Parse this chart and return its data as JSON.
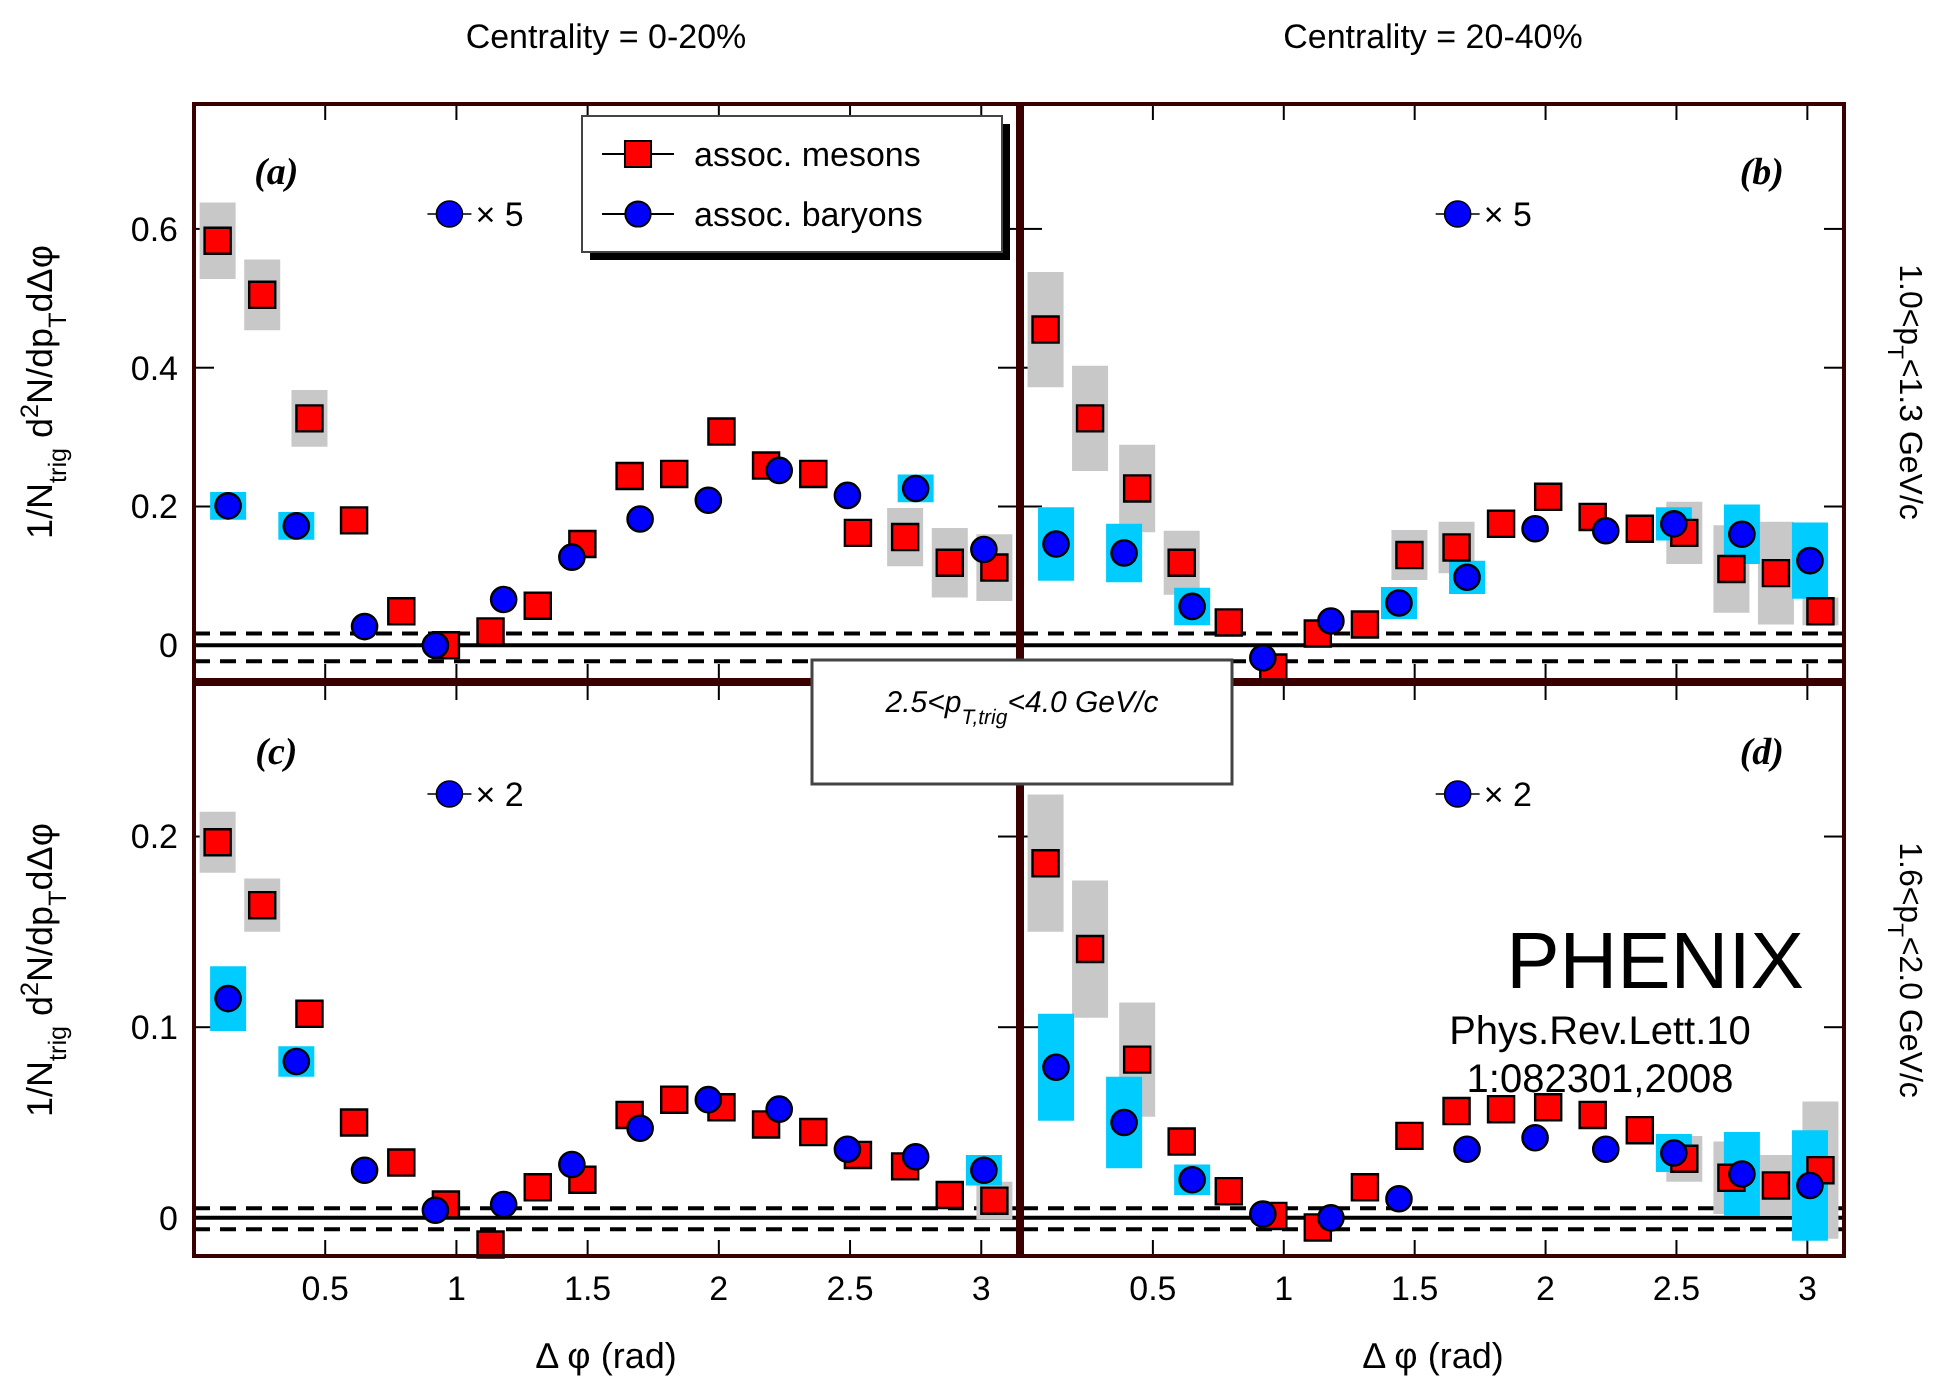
{
  "chart_data": [
    {
      "type": "scatter",
      "title": "Centrality = 0-20%",
      "ylabel": "1/N$_{trig}$ d$^{2}$N/dp$_{T}$dΔφ",
      "xlim": [
        0,
        3.14
      ],
      "xticks": [
        0.5,
        1,
        1.5,
        2,
        2.5,
        3
      ],
      "ylim": [
        -0.05,
        0.78
      ],
      "yticks": [
        0,
        0.2,
        0.4,
        0.6
      ],
      "tick_labels": "y",
      "legend": "top right",
      "annotations": [
        "(a)",
        "× 5"
      ],
      "ref_lines": [
        {
          "axis": "y",
          "value": 0,
          "line_style": "solid"
        },
        {
          "axis": "y",
          "value": 0.017,
          "line_style": "dashed"
        },
        {
          "axis": "y",
          "value": -0.023,
          "line_style": "dashed"
        }
      ],
      "series": [
        {
          "name": "assoc. mesons",
          "color": "#ff0000",
          "marker": "square",
          "x": [
            0.09,
            0.26,
            0.44,
            0.61,
            0.79,
            0.96,
            1.13,
            1.31,
            1.48,
            1.66,
            1.83,
            2.01,
            2.18,
            2.36,
            2.53,
            2.71,
            2.88,
            3.05
          ],
          "values": [
            0.583,
            0.505,
            0.327,
            0.18,
            0.049,
            0.0,
            0.02,
            0.057,
            0.146,
            0.244,
            0.247,
            0.308,
            0.259,
            0.247,
            0.162,
            0.156,
            0.119,
            0.112
          ],
          "errors": [
            0.055,
            0.051,
            0.041,
            null,
            null,
            null,
            null,
            null,
            null,
            null,
            null,
            null,
            null,
            null,
            null,
            0.042,
            0.05,
            0.048
          ]
        },
        {
          "name": "assoc. baryons",
          "color": "#0000ff",
          "marker": "circle",
          "x": [
            0.13,
            0.39,
            0.65,
            0.92,
            1.18,
            1.44,
            1.7,
            1.96,
            2.23,
            2.49,
            2.75,
            3.01
          ],
          "values": [
            0.201,
            0.172,
            0.027,
            0.0,
            0.066,
            0.127,
            0.182,
            0.209,
            0.252,
            0.216,
            0.226,
            0.138
          ],
          "errors": [
            0.02,
            0.02,
            null,
            null,
            null,
            null,
            null,
            null,
            null,
            null,
            0.02,
            null
          ]
        }
      ]
    },
    {
      "type": "scatter",
      "title": "Centrality = 20-40%",
      "y2label": "1.0<p$_{T}$<1.3 GeV/c",
      "xlim": [
        0,
        3.14
      ],
      "xticks": [
        0.5,
        1,
        1.5,
        2,
        2.5,
        3
      ],
      "ylim": [
        -0.05,
        0.78
      ],
      "yticks": [
        0,
        0.2,
        0.4,
        0.6
      ],
      "tick_labels": false,
      "annotations": [
        "(b)",
        "× 5"
      ],
      "ref_lines": [
        {
          "axis": "y",
          "value": 0,
          "line_style": "solid"
        },
        {
          "axis": "y",
          "value": 0.017,
          "line_style": "dashed"
        },
        {
          "axis": "y",
          "value": -0.023,
          "line_style": "dashed"
        }
      ],
      "series": [
        {
          "color": "#ff0000",
          "marker": "square",
          "x": [
            0.09,
            0.26,
            0.44,
            0.61,
            0.79,
            0.96,
            1.13,
            1.31,
            1.48,
            1.66,
            1.83,
            2.01,
            2.18,
            2.36,
            2.53,
            2.71,
            2.88,
            3.05
          ],
          "values": [
            0.455,
            0.327,
            0.226,
            0.119,
            0.033,
            -0.032,
            0.017,
            0.03,
            0.13,
            0.141,
            0.175,
            0.214,
            0.185,
            0.168,
            0.162,
            0.11,
            0.104,
            0.049
          ],
          "errors": [
            0.083,
            0.076,
            0.063,
            0.046,
            null,
            null,
            null,
            null,
            0.036,
            0.037,
            null,
            null,
            null,
            null,
            0.045,
            0.063,
            0.074,
            0.02
          ]
        },
        {
          "color": "#0000ff",
          "marker": "circle",
          "x": [
            0.13,
            0.39,
            0.65,
            0.92,
            1.18,
            1.44,
            1.7,
            1.96,
            2.23,
            2.49,
            2.75,
            3.01
          ],
          "values": [
            0.146,
            0.133,
            0.056,
            -0.018,
            0.035,
            0.061,
            0.098,
            0.168,
            0.165,
            0.175,
            0.16,
            0.122
          ],
          "errors": [
            0.053,
            0.042,
            0.027,
            null,
            null,
            0.023,
            0.024,
            null,
            null,
            0.024,
            0.043,
            0.055
          ]
        }
      ]
    },
    {
      "type": "scatter",
      "ylabel": "1/N$_{trig}$ d$^{2}$N/dp$_{T}$dΔφ",
      "xlabel": "Δ φ (rad)",
      "xlim": [
        0,
        3.14
      ],
      "xticks": [
        0.5,
        1,
        1.5,
        2,
        2.5,
        3
      ],
      "ylim": [
        -0.02,
        0.28
      ],
      "yticks": [
        0,
        0.1,
        0.2
      ],
      "annotations": [
        "(c)",
        "× 2",
        "2.5<p$_{T,trig}$<4.0 GeV/c"
      ],
      "ref_lines": [
        {
          "axis": "y",
          "value": 0,
          "line_style": "solid"
        },
        {
          "axis": "y",
          "value": 0.005,
          "line_style": "dashed"
        },
        {
          "axis": "y",
          "value": -0.006,
          "line_style": "dashed"
        }
      ],
      "series": [
        {
          "color": "#ff0000",
          "marker": "square",
          "x": [
            0.09,
            0.26,
            0.44,
            0.61,
            0.79,
            0.96,
            1.13,
            1.31,
            1.48,
            1.66,
            1.83,
            2.01,
            2.18,
            2.36,
            2.53,
            2.71,
            2.88,
            3.05
          ],
          "values": [
            0.197,
            0.164,
            0.107,
            0.05,
            0.029,
            0.007,
            -0.014,
            0.016,
            0.02,
            0.054,
            0.062,
            0.058,
            0.049,
            0.045,
            0.033,
            0.027,
            0.012,
            0.009
          ],
          "errors": [
            0.016,
            0.014,
            null,
            null,
            null,
            null,
            null,
            null,
            null,
            null,
            null,
            null,
            null,
            null,
            null,
            null,
            null,
            0.01
          ]
        },
        {
          "color": "#0000ff",
          "marker": "circle",
          "x": [
            0.13,
            0.39,
            0.65,
            0.92,
            1.18,
            1.44,
            1.7,
            1.96,
            2.23,
            2.49,
            2.75,
            3.01
          ],
          "values": [
            0.115,
            0.082,
            0.025,
            0.004,
            0.007,
            0.028,
            0.047,
            0.062,
            0.057,
            0.036,
            0.032,
            0.025
          ],
          "errors": [
            0.017,
            0.008,
            null,
            null,
            null,
            null,
            null,
            null,
            null,
            null,
            null,
            0.008
          ]
        }
      ]
    },
    {
      "type": "scatter",
      "xlabel": "Δ φ (rad)",
      "y2label": "1.6<p$_{T}$<2.0 GeV/c",
      "xlim": [
        0,
        3.14
      ],
      "xticks": [
        0.5,
        1,
        1.5,
        2,
        2.5,
        3
      ],
      "ylim": [
        -0.02,
        0.28
      ],
      "yticks": [
        0,
        0.1,
        0.2
      ],
      "tick_labels": "x",
      "annotations": [
        "(d)",
        "× 2",
        "PHENIX",
        "Phys.Rev.Lett.101:082301,2008"
      ],
      "ref_lines": [
        {
          "axis": "y",
          "value": 0,
          "line_style": "solid"
        },
        {
          "axis": "y",
          "value": 0.005,
          "line_style": "dashed"
        },
        {
          "axis": "y",
          "value": -0.006,
          "line_style": "dashed"
        }
      ],
      "series": [
        {
          "color": "#ff0000",
          "marker": "square",
          "x": [
            0.09,
            0.26,
            0.44,
            0.61,
            0.79,
            0.96,
            1.13,
            1.31,
            1.48,
            1.66,
            1.83,
            2.01,
            2.18,
            2.36,
            2.53,
            2.71,
            2.88,
            3.05
          ],
          "values": [
            0.186,
            0.141,
            0.083,
            0.04,
            0.014,
            0.001,
            -0.005,
            0.016,
            0.043,
            0.056,
            0.057,
            0.058,
            0.054,
            0.046,
            0.031,
            0.021,
            0.017,
            0.025
          ],
          "errors": [
            0.036,
            0.036,
            0.03,
            null,
            null,
            null,
            null,
            null,
            null,
            null,
            null,
            null,
            null,
            null,
            0.012,
            0.019,
            0.016,
            0.036
          ]
        },
        {
          "color": "#0000ff",
          "marker": "circle",
          "x": [
            0.13,
            0.39,
            0.65,
            0.92,
            1.18,
            1.44,
            1.7,
            1.96,
            2.23,
            2.49,
            2.75,
            3.01
          ],
          "values": [
            0.079,
            0.05,
            0.02,
            0.002,
            0.0,
            0.01,
            0.036,
            0.042,
            0.036,
            0.034,
            0.023,
            0.017
          ],
          "errors": [
            0.028,
            0.024,
            0.008,
            null,
            null,
            null,
            null,
            null,
            null,
            0.01,
            0.022,
            0.029
          ]
        }
      ]
    }
  ]
}
